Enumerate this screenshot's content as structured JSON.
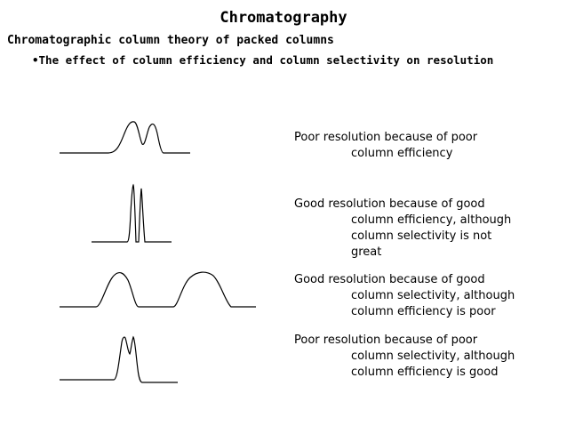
{
  "header": {
    "title": "Chromatography",
    "subtitle": "Chromatographic column theory of packed columns",
    "bullet": "•The effect of column efficiency and column selectivity on resolution"
  },
  "cases": [
    {
      "first_line": "Poor resolution because of poor",
      "rest_lines": [
        "column efficiency"
      ]
    },
    {
      "first_line": "Good resolution because of good",
      "rest_lines": [
        "column efficiency, although",
        "column selectivity is not",
        "great"
      ]
    },
    {
      "first_line": "Good resolution because of good",
      "rest_lines": [
        "column selectivity, although",
        "column efficiency is poor"
      ]
    },
    {
      "first_line": "Poor resolution because of poor",
      "rest_lines": [
        "column selectivity, although",
        "column efficiency is good"
      ]
    }
  ]
}
